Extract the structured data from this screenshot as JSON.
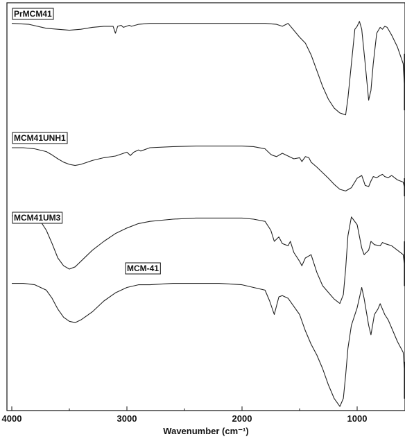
{
  "chart_data": {
    "type": "line",
    "title": "",
    "xlabel": "Wavenumber (cm⁻¹)",
    "ylabel": "",
    "xlim": [
      4000,
      400
    ],
    "x_reversed": true,
    "y_ticks_shown": false,
    "grid": false,
    "x_ticks": [
      "4000",
      "3000",
      "2000",
      "1000"
    ],
    "x_tick_values": [
      4000,
      3000,
      2000,
      1000
    ],
    "series": [
      {
        "name": "PrMCM41",
        "x": [
          4000,
          3850,
          3700,
          3600,
          3500,
          3400,
          3300,
          3200,
          3120,
          3100,
          3080,
          3050,
          3030,
          2980,
          2960,
          2900,
          2800,
          2600,
          2400,
          2200,
          2000,
          1800,
          1700,
          1650,
          1600,
          1550,
          1500,
          1450,
          1400,
          1350,
          1300,
          1250,
          1200,
          1150,
          1100,
          1080,
          1050,
          1020,
          1000,
          980,
          960,
          930,
          900,
          880,
          860,
          830,
          800,
          780,
          760,
          740,
          720,
          700,
          650,
          600,
          550,
          500,
          470,
          440,
          420,
          400
        ],
        "y": [
          96,
          95,
          91,
          90,
          89,
          90,
          92,
          93,
          93,
          86,
          93,
          94,
          92,
          94,
          93,
          95,
          96,
          96,
          96,
          96,
          96,
          96,
          95,
          93,
          96,
          89,
          82,
          76,
          64,
          48,
          32,
          19,
          10,
          5,
          3,
          20,
          55,
          90,
          93,
          98,
          90,
          55,
          18,
          28,
          55,
          86,
          92,
          90,
          93,
          92,
          88,
          84,
          72,
          55,
          35,
          15,
          8,
          35,
          60,
          65
        ]
      },
      {
        "name": "MCM41UNH1",
        "x": [
          4000,
          3900,
          3800,
          3700,
          3650,
          3600,
          3550,
          3500,
          3450,
          3400,
          3300,
          3200,
          3100,
          3000,
          2970,
          2940,
          2900,
          2880,
          2800,
          2600,
          2400,
          2200,
          2000,
          1900,
          1800,
          1750,
          1730,
          1700,
          1650,
          1600,
          1550,
          1500,
          1480,
          1450,
          1420,
          1400,
          1350,
          1300,
          1250,
          1200,
          1150,
          1100,
          1050,
          1000,
          960,
          940,
          930,
          900,
          880,
          860,
          830,
          800,
          780,
          760,
          730,
          700,
          650,
          600,
          550,
          500,
          460,
          430,
          400
        ],
        "y": [
          90,
          90,
          88,
          83,
          77,
          70,
          64,
          60,
          58,
          60,
          67,
          72,
          75,
          82,
          76,
          82,
          86,
          84,
          90,
          92,
          93,
          93,
          93,
          92,
          88,
          78,
          76,
          74,
          80,
          75,
          70,
          72,
          65,
          74,
          72,
          64,
          55,
          45,
          35,
          24,
          15,
          12,
          18,
          35,
          40,
          28,
          22,
          20,
          30,
          38,
          36,
          40,
          42,
          38,
          36,
          40,
          32,
          28,
          20,
          10,
          3,
          25,
          35
        ]
      },
      {
        "name": "MCM41UM3",
        "x": [
          4000,
          3900,
          3800,
          3750,
          3700,
          3650,
          3600,
          3550,
          3500,
          3450,
          3400,
          3300,
          3200,
          3100,
          3000,
          2900,
          2800,
          2600,
          2400,
          2200,
          2000,
          1900,
          1800,
          1750,
          1720,
          1680,
          1650,
          1600,
          1580,
          1550,
          1500,
          1480,
          1450,
          1400,
          1350,
          1300,
          1250,
          1200,
          1150,
          1120,
          1100,
          1080,
          1050,
          1000,
          960,
          940,
          920,
          900,
          880,
          850,
          800,
          780,
          760,
          730,
          700,
          650,
          600,
          550,
          500,
          460,
          430,
          400
        ],
        "y": [
          93,
          93,
          92,
          88,
          80,
          68,
          55,
          48,
          45,
          47,
          52,
          62,
          70,
          77,
          82,
          86,
          88,
          90,
          91,
          91,
          91,
          90,
          88,
          80,
          70,
          74,
          68,
          66,
          70,
          60,
          52,
          48,
          55,
          58,
          42,
          30,
          24,
          18,
          14,
          22,
          45,
          75,
          92,
          85,
          64,
          58,
          60,
          62,
          70,
          67,
          66,
          69,
          68,
          67,
          66,
          62,
          58,
          50,
          40,
          30,
          55,
          70
        ]
      },
      {
        "name": "MCM-41",
        "x": [
          4000,
          3900,
          3800,
          3700,
          3650,
          3600,
          3550,
          3500,
          3450,
          3400,
          3300,
          3200,
          3100,
          3000,
          2900,
          2800,
          2600,
          2400,
          2200,
          2000,
          1900,
          1800,
          1760,
          1720,
          1680,
          1650,
          1600,
          1550,
          1500,
          1450,
          1400,
          1350,
          1300,
          1250,
          1200,
          1150,
          1120,
          1100,
          1080,
          1050,
          1000,
          960,
          940,
          920,
          900,
          880,
          850,
          820,
          800,
          780,
          760,
          730,
          700,
          650,
          600,
          550,
          500,
          470,
          440,
          420,
          400
        ],
        "y": [
          93,
          93,
          92,
          88,
          82,
          74,
          68,
          65,
          64,
          66,
          72,
          80,
          86,
          90,
          92,
          92,
          93,
          93,
          93,
          92,
          90,
          88,
          80,
          70,
          83,
          84,
          82,
          76,
          70,
          58,
          48,
          40,
          30,
          18,
          8,
          2,
          8,
          25,
          45,
          62,
          75,
          90,
          82,
          72,
          62,
          55,
          70,
          74,
          78,
          74,
          70,
          66,
          60,
          50,
          42,
          30,
          15,
          8,
          22,
          30,
          35
        ]
      }
    ]
  }
}
